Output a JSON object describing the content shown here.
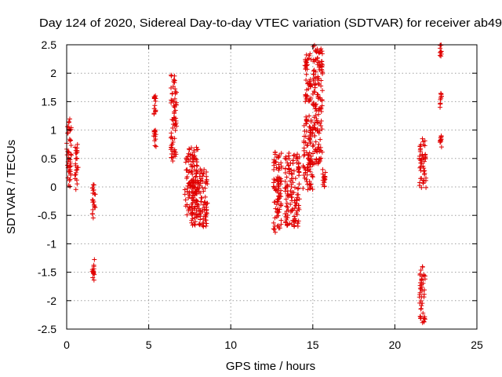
{
  "chart_data": {
    "type": "scatter",
    "title": "Day 124 of 2020, Sidereal Day-to-day VTEC variation (SDTVAR) for receiver ab49",
    "xlabel": "GPS time / hours",
    "ylabel": "SDTVAR / TECUs",
    "xlim": [
      0,
      25
    ],
    "ylim": [
      -2.5,
      2.5
    ],
    "xticks": [
      "0",
      "5",
      "10",
      "15",
      "20",
      "25"
    ],
    "xtick_values": [
      0,
      5,
      10,
      15,
      20,
      25
    ],
    "yticks": [
      "-2.5",
      "-2",
      "-1.5",
      "-1",
      "-0.5",
      "0",
      "0.5",
      "1",
      "1.5",
      "2",
      "2.5"
    ],
    "ytick_values": [
      -2.5,
      -2,
      -1.5,
      -1,
      -0.5,
      0,
      0.5,
      1,
      1.5,
      2,
      2.5
    ],
    "grid": true,
    "marker": "+",
    "color": "#e00000",
    "clusters": [
      {
        "x": [
          0.0,
          0.3
        ],
        "y": [
          0.0,
          1.2
        ]
      },
      {
        "x": [
          0.5,
          0.7
        ],
        "y": [
          -0.05,
          0.75
        ]
      },
      {
        "x": [
          1.55,
          1.75
        ],
        "y": [
          -0.55,
          0.05
        ]
      },
      {
        "x": [
          1.55,
          1.7
        ],
        "y": [
          -1.65,
          -1.25
        ]
      },
      {
        "x": [
          5.3,
          5.45
        ],
        "y": [
          0.7,
          1.0
        ]
      },
      {
        "x": [
          5.3,
          5.45
        ],
        "y": [
          1.25,
          1.62
        ]
      },
      {
        "x": [
          6.35,
          6.7
        ],
        "y": [
          0.45,
          1.98
        ]
      },
      {
        "x": [
          7.2,
          8.0
        ],
        "y": [
          -0.5,
          0.7
        ]
      },
      {
        "x": [
          7.6,
          8.6
        ],
        "y": [
          -0.7,
          0.35
        ]
      },
      {
        "x": [
          12.6,
          13.1
        ],
        "y": [
          -0.8,
          0.65
        ]
      },
      {
        "x": [
          13.3,
          14.2
        ],
        "y": [
          -0.7,
          0.6
        ]
      },
      {
        "x": [
          14.4,
          15.0
        ],
        "y": [
          -0.05,
          1.3
        ]
      },
      {
        "x": [
          14.5,
          14.9
        ],
        "y": [
          1.5,
          2.35
        ]
      },
      {
        "x": [
          15.0,
          15.6
        ],
        "y": [
          0.4,
          2.5
        ]
      },
      {
        "x": [
          15.6,
          15.8
        ],
        "y": [
          0.0,
          0.35
        ]
      },
      {
        "x": [
          21.5,
          21.9
        ],
        "y": [
          -0.1,
          0.85
        ]
      },
      {
        "x": [
          21.5,
          21.85
        ],
        "y": [
          -2.4,
          -1.4
        ]
      },
      {
        "x": [
          22.75,
          22.85
        ],
        "y": [
          0.65,
          0.9
        ]
      },
      {
        "x": [
          22.75,
          22.85
        ],
        "y": [
          1.4,
          1.65
        ]
      },
      {
        "x": [
          22.75,
          22.85
        ],
        "y": [
          2.3,
          2.5
        ]
      }
    ]
  }
}
